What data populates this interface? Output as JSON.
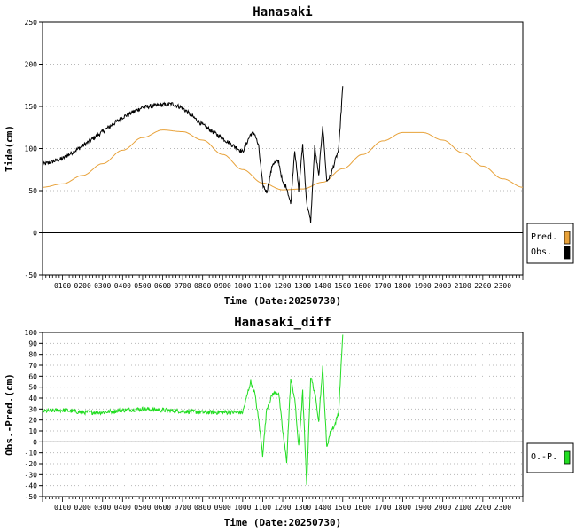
{
  "chart_data": [
    {
      "type": "line",
      "title": "Hanasaki",
      "xlabel": "Time (Date:20250730)",
      "ylabel": "Tide(cm)",
      "ylim": [
        -50,
        250
      ],
      "yticks": [
        -50,
        0,
        50,
        100,
        150,
        200,
        250
      ],
      "xlim": [
        0,
        24
      ],
      "xtick_labels": [
        "0100",
        "0200",
        "0300",
        "0400",
        "0500",
        "0600",
        "0700",
        "0800",
        "0900",
        "1000",
        "1100",
        "1200",
        "1300",
        "1400",
        "1500",
        "1600",
        "1700",
        "1800",
        "1900",
        "2000",
        "2100",
        "2200",
        "2300"
      ],
      "grid": true,
      "legend_position": "right",
      "series": [
        {
          "name": "Pred.",
          "color": "#e8a23a",
          "x": [
            0,
            1,
            2,
            3,
            4,
            5,
            6,
            7,
            8,
            9,
            10,
            11,
            12,
            13,
            14,
            15,
            16,
            17,
            18,
            19,
            20,
            21,
            22,
            23,
            24
          ],
          "values": [
            54,
            58,
            68,
            82,
            98,
            113,
            122,
            120,
            110,
            93,
            75,
            59,
            51,
            52,
            60,
            76,
            93,
            109,
            119,
            119,
            110,
            95,
            79,
            64,
            54
          ]
        },
        {
          "name": "Obs.",
          "color": "#000000",
          "x": [
            0,
            1,
            2,
            3,
            4,
            5,
            6,
            6.5,
            7,
            8,
            9,
            10,
            10.4,
            10.6,
            10.8,
            11,
            11.2,
            11.5,
            11.8,
            12,
            12.2,
            12.4,
            12.6,
            12.8,
            13,
            13.2,
            13.4,
            13.6,
            13.8,
            14,
            14.2,
            14.4,
            14.6,
            14.8,
            15
          ],
          "values": [
            81,
            88,
            103,
            120,
            137,
            149,
            152,
            153,
            148,
            128,
            112,
            96,
            117,
            118,
            102,
            57,
            48,
            82,
            85,
            59,
            54,
            34,
            99,
            51,
            105,
            35,
            13,
            102,
            67,
            128,
            61,
            68,
            84,
            99,
            174
          ]
        }
      ]
    },
    {
      "type": "line",
      "title": "Hanasaki_diff",
      "xlabel": "Time (Date:20250730)",
      "ylabel": "Obs.-Pred.(cm)",
      "ylim": [
        -50,
        100
      ],
      "yticks": [
        -50,
        -40,
        -30,
        -20,
        -10,
        0,
        10,
        20,
        30,
        40,
        50,
        60,
        70,
        80,
        90,
        100
      ],
      "xlim": [
        0,
        24
      ],
      "xtick_labels": [
        "0100",
        "0200",
        "0300",
        "0400",
        "0500",
        "0600",
        "0700",
        "0800",
        "0900",
        "1000",
        "1100",
        "1200",
        "1300",
        "1400",
        "1500",
        "1600",
        "1700",
        "1800",
        "1900",
        "2000",
        "2100",
        "2200",
        "2300"
      ],
      "grid": true,
      "legend_position": "right",
      "series": [
        {
          "name": "O.-P.",
          "color": "#22dd22",
          "x": [
            0,
            1,
            2,
            3,
            4,
            5,
            6,
            7,
            8,
            9,
            10,
            10.4,
            10.6,
            10.8,
            11,
            11.2,
            11.5,
            11.8,
            12,
            12.2,
            12.4,
            12.6,
            12.8,
            13,
            13.2,
            13.4,
            13.6,
            13.8,
            14,
            14.2,
            14.4,
            14.6,
            14.8,
            15
          ],
          "values": [
            28,
            29,
            27,
            27,
            29,
            30,
            29,
            28,
            27,
            27,
            27,
            55,
            45,
            20,
            -12,
            30,
            44,
            45,
            10,
            -18,
            57,
            40,
            -5,
            46,
            -40,
            60,
            45,
            20,
            68,
            -5,
            10,
            15,
            28,
            98
          ]
        }
      ]
    }
  ]
}
